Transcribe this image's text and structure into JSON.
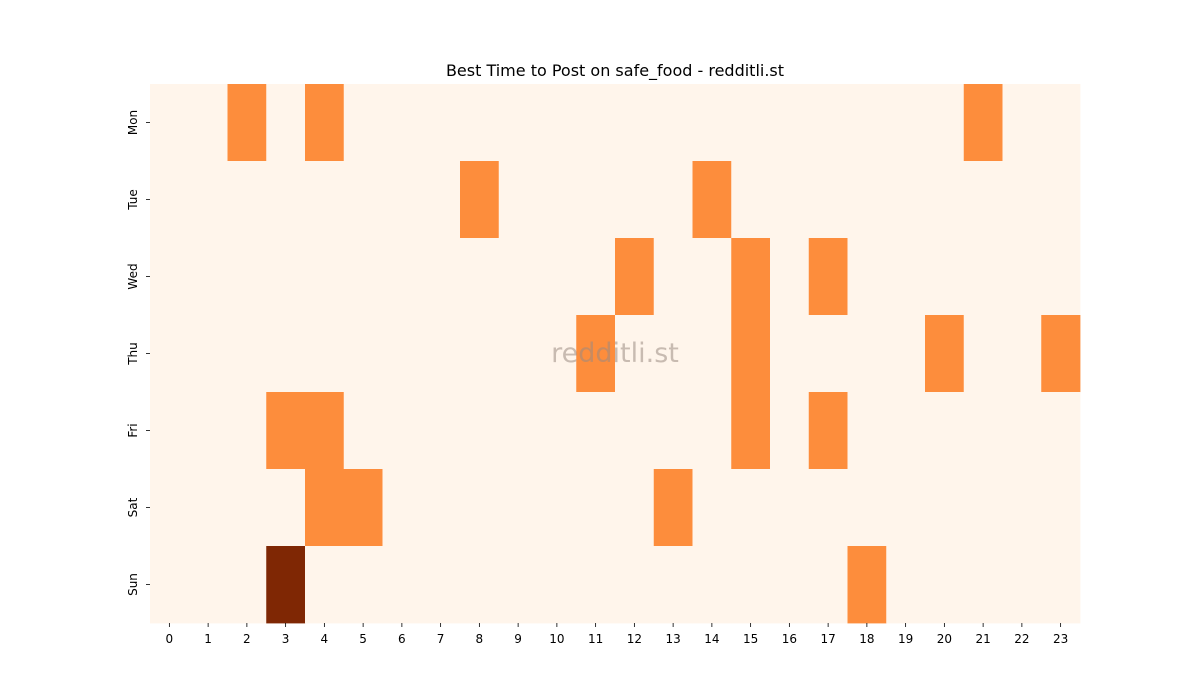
{
  "chart_data": {
    "type": "heatmap",
    "title": "Best Time to Post on safe_food - redditli.st",
    "watermark": "redditli.st",
    "x_categories": [
      "0",
      "1",
      "2",
      "3",
      "4",
      "5",
      "6",
      "7",
      "8",
      "9",
      "10",
      "11",
      "12",
      "13",
      "14",
      "15",
      "16",
      "17",
      "18",
      "19",
      "20",
      "21",
      "22",
      "23"
    ],
    "y_categories": [
      "Mon",
      "Tue",
      "Wed",
      "Thu",
      "Fri",
      "Sat",
      "Sun"
    ],
    "values": [
      [
        0,
        0,
        1,
        0,
        1,
        0,
        0,
        0,
        0,
        0,
        0,
        0,
        0,
        0,
        0,
        0,
        0,
        0,
        0,
        0,
        0,
        1,
        0,
        0
      ],
      [
        0,
        0,
        0,
        0,
        0,
        0,
        0,
        0,
        1,
        0,
        0,
        0,
        0,
        0,
        1,
        0,
        0,
        0,
        0,
        0,
        0,
        0,
        0,
        0
      ],
      [
        0,
        0,
        0,
        0,
        0,
        0,
        0,
        0,
        0,
        0,
        0,
        0,
        1,
        0,
        0,
        1,
        0,
        1,
        0,
        0,
        0,
        0,
        0,
        0
      ],
      [
        0,
        0,
        0,
        0,
        0,
        0,
        0,
        0,
        0,
        0,
        0,
        1,
        0,
        0,
        0,
        1,
        0,
        0,
        0,
        0,
        1,
        0,
        0,
        1
      ],
      [
        0,
        0,
        0,
        1,
        1,
        0,
        0,
        0,
        0,
        0,
        0,
        0,
        0,
        0,
        0,
        1,
        0,
        1,
        0,
        0,
        0,
        0,
        0,
        0
      ],
      [
        0,
        0,
        0,
        0,
        1,
        1,
        0,
        0,
        0,
        0,
        0,
        0,
        0,
        1,
        0,
        0,
        0,
        0,
        0,
        0,
        0,
        0,
        0,
        0
      ],
      [
        0,
        0,
        0,
        2,
        0,
        0,
        0,
        0,
        0,
        0,
        0,
        0,
        0,
        0,
        0,
        0,
        0,
        0,
        1,
        0,
        0,
        0,
        0,
        0
      ]
    ],
    "colormap": [
      "#fff5eb",
      "#fd8d3c",
      "#7f2704"
    ],
    "xlabel": "",
    "ylabel": ""
  }
}
